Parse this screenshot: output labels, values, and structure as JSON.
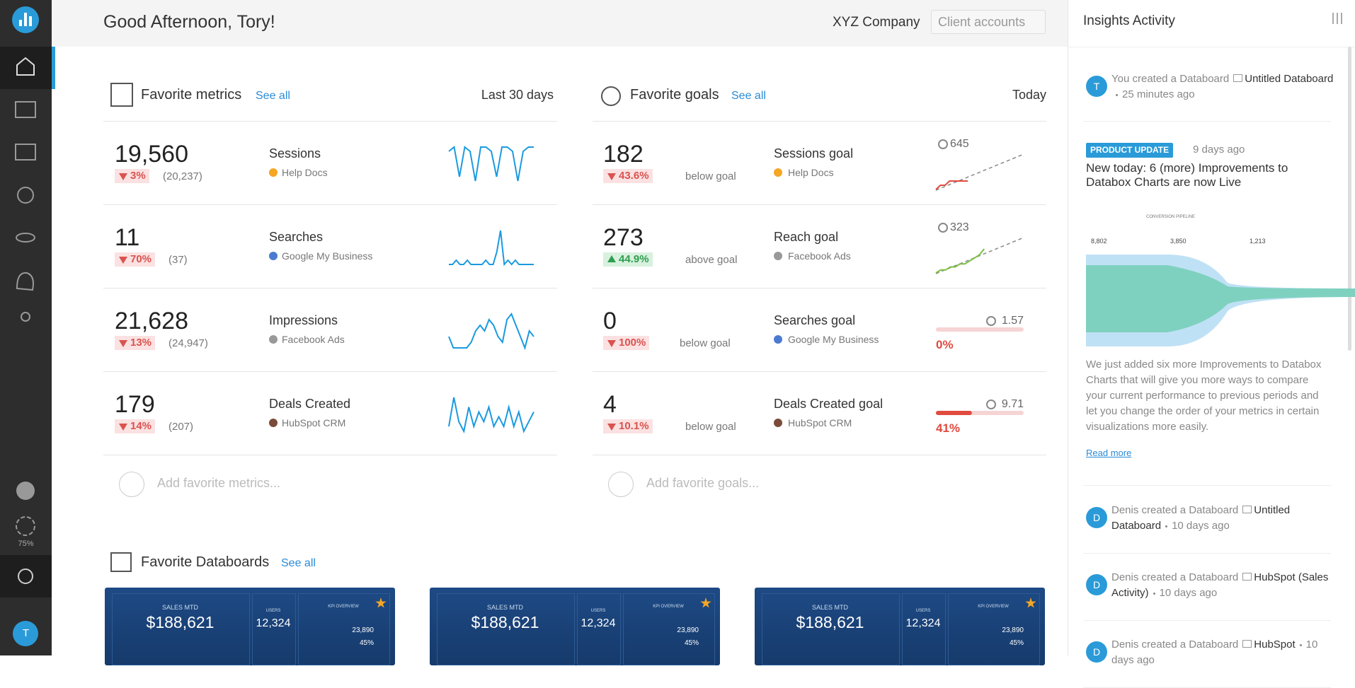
{
  "header": {
    "greeting": "Good Afternoon, Tory!",
    "company": "XYZ Company",
    "account_select": "Client accounts"
  },
  "sidebar": {
    "badge": "75%",
    "avatar": "T"
  },
  "metrics": {
    "title": "Favorite metrics",
    "see_all": "See all",
    "range": "Last 30 days",
    "add": "Add favorite metrics...",
    "items": [
      {
        "value": "19,560",
        "change": "3%",
        "direction": "down",
        "previous": "(20,237)",
        "name": "Sessions",
        "source": "Help Docs",
        "source_color": "#f5a623",
        "sparkline": [
          8,
          9,
          2,
          9,
          8,
          1,
          9,
          9,
          8,
          2,
          9,
          9,
          8,
          1,
          8,
          9,
          9
        ]
      },
      {
        "value": "11",
        "change": "70%",
        "direction": "down",
        "previous": "(37)",
        "name": "Searches",
        "source": "Google My Business",
        "source_color": "#4a7bd0",
        "sparkline": [
          0,
          0,
          1,
          0,
          0,
          1,
          0,
          0,
          0,
          0,
          1,
          0,
          0,
          3,
          8,
          0,
          1,
          0,
          1,
          0,
          0,
          0,
          0,
          0
        ]
      },
      {
        "value": "21,628",
        "change": "13%",
        "direction": "down",
        "previous": "(24,947)",
        "name": "Impressions",
        "source": "Facebook Ads",
        "source_color": "#999999",
        "sparkline": [
          3,
          1,
          1,
          1,
          1,
          2,
          4,
          5,
          4,
          6,
          5,
          3,
          2,
          6,
          7,
          5,
          3,
          1,
          4,
          3
        ]
      },
      {
        "value": "179",
        "change": "14%",
        "direction": "down",
        "previous": "(207)",
        "name": "Deals Created",
        "source": "HubSpot CRM",
        "source_color": "#7a4b3a",
        "sparkline": [
          2,
          8,
          3,
          1,
          6,
          2,
          5,
          3,
          6,
          2,
          4,
          2,
          6,
          2,
          5,
          1,
          3,
          5
        ]
      }
    ]
  },
  "goals": {
    "title": "Favorite goals",
    "see_all": "See all",
    "range": "Today",
    "add": "Add favorite goals...",
    "items": [
      {
        "value": "182",
        "change": "43.6%",
        "direction": "down",
        "status": "below goal",
        "name": "Sessions goal",
        "source": "Help Docs",
        "source_color": "#f5a623",
        "target": "645",
        "trend": [
          1,
          2,
          2,
          3,
          3,
          3,
          3,
          3
        ],
        "color": "#e04b3f"
      },
      {
        "value": "273",
        "change": "44.9%",
        "direction": "up",
        "status": "above goal",
        "name": "Reach goal",
        "source": "Facebook Ads",
        "source_color": "#999999",
        "target": "323",
        "trend": [
          1,
          2,
          2,
          3,
          3,
          4,
          4,
          5,
          6,
          7,
          9
        ],
        "color": "#7cbf45"
      },
      {
        "value": "0",
        "change": "100%",
        "direction": "down",
        "status": "below goal",
        "name": "Searches goal",
        "source": "Google My Business",
        "source_color": "#4a7bd0",
        "target": "1.57",
        "progress": 0,
        "progress_label": "0%"
      },
      {
        "value": "4",
        "change": "10.1%",
        "direction": "down",
        "status": "below goal",
        "name": "Deals Created goal",
        "source": "HubSpot CRM",
        "source_color": "#7a4b3a",
        "target": "9.71",
        "progress": 41,
        "progress_label": "41%"
      }
    ]
  },
  "databoards": {
    "title": "Favorite Databoards",
    "see_all": "See all",
    "cards": [
      {
        "label": "SALES MTD",
        "value": "$188,621",
        "users_label": "USERS",
        "users": "12,324",
        "kpi": "KPI OVERVIEW",
        "kpi_users": "23,890",
        "kpi_rate": "45%"
      },
      {
        "label": "SALES MTD",
        "value": "$188,621",
        "users_label": "USERS",
        "users": "12,324",
        "kpi": "KPI OVERVIEW",
        "kpi_users": "23,890",
        "kpi_rate": "45%"
      },
      {
        "label": "SALES MTD",
        "value": "$188,621",
        "users_label": "USERS",
        "users": "12,324",
        "kpi": "KPI OVERVIEW",
        "kpi_users": "23,890",
        "kpi_rate": "45%"
      }
    ]
  },
  "insights": {
    "title": "Insights Activity",
    "first": {
      "avatar": "T",
      "text": "You created a Databoard",
      "board": "Untitled Databoard",
      "time": "25 minutes ago"
    },
    "update": {
      "tag": "PRODUCT UPDATE",
      "time": "9 days ago",
      "title": "New today: 6 (more) Improvements to Databox Charts are now Live",
      "image_title": "CONVERSION PIPELINE",
      "image_values": [
        "8,802",
        "3,850",
        "1,213"
      ],
      "body": "We just added six more Improvements to Databox Charts that will give you more ways to compare your current performance to previous periods and let you change the order of your metrics in certain visualizations more easily.",
      "link": "Read more"
    },
    "items": [
      {
        "avatar": "D",
        "text": "Denis created a Databoard",
        "board": "Untitled Databoard",
        "time": "10 days ago"
      },
      {
        "avatar": "D",
        "text": "Denis created a Databoard",
        "board": "HubSpot (Sales Activity)",
        "time": "10 days ago"
      },
      {
        "avatar": "D",
        "text": "Denis created a Databoard",
        "board": "HubSpot",
        "time": "10 days ago"
      }
    ]
  }
}
